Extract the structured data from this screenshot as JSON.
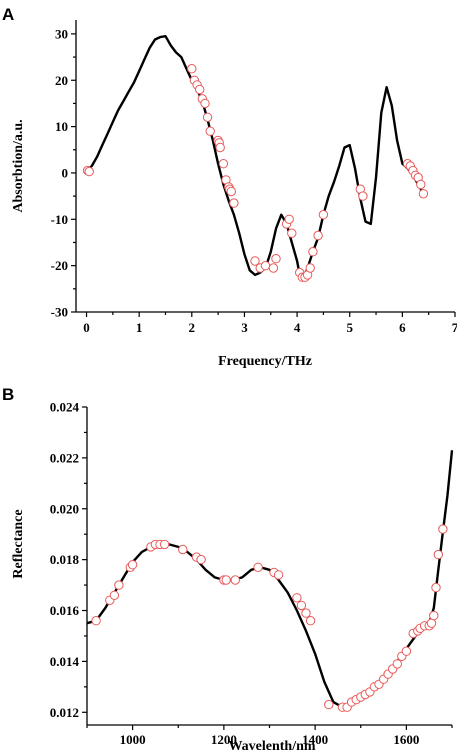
{
  "chart_data": [
    {
      "panel": "A",
      "type": "line",
      "title": "",
      "xlabel": "Frequency/THz",
      "ylabel": "Absorbtion/a.u.",
      "xlim": [
        -0.2,
        7
      ],
      "ylim": [
        -30,
        33
      ],
      "xticks": [
        0,
        1,
        2,
        3,
        4,
        5,
        6,
        7
      ],
      "yticks": [
        -30,
        -20,
        -10,
        0,
        10,
        20,
        30
      ],
      "grid": false,
      "series": [
        {
          "style": "line",
          "color": "#000000",
          "x": [
            0.0,
            0.1,
            0.2,
            0.3,
            0.4,
            0.5,
            0.6,
            0.7,
            0.8,
            0.9,
            1.0,
            1.1,
            1.2,
            1.3,
            1.4,
            1.5,
            1.6,
            1.7,
            1.8,
            1.9,
            2.0,
            2.1,
            2.2,
            2.3,
            2.4,
            2.5,
            2.6,
            2.7,
            2.8,
            2.9,
            3.0,
            3.1,
            3.2,
            3.3,
            3.4,
            3.5,
            3.6,
            3.7,
            3.8,
            3.9,
            4.0,
            4.05,
            4.1,
            4.15,
            4.2,
            4.3,
            4.4,
            4.5,
            4.6,
            4.7,
            4.8,
            4.9,
            5.0,
            5.1,
            5.2,
            5.3,
            5.4,
            5.5,
            5.6,
            5.7,
            5.8,
            5.9,
            6.0,
            6.1,
            6.2,
            6.3,
            6.4
          ],
          "y": [
            0.5,
            1.5,
            3.5,
            6,
            8.5,
            11,
            13.5,
            15.5,
            17.5,
            19.5,
            22,
            24.5,
            27,
            28.8,
            29.3,
            29.5,
            27.5,
            26,
            25,
            22.5,
            20,
            18,
            15.5,
            11.5,
            7,
            2,
            -2.5,
            -6,
            -9,
            -13,
            -17.5,
            -21,
            -22,
            -21.5,
            -20.5,
            -17,
            -12,
            -9,
            -11,
            -15,
            -19,
            -22,
            -22.5,
            -22,
            -20.5,
            -17,
            -14,
            -9,
            -5,
            -2,
            1.5,
            5.5,
            6,
            1,
            -5.5,
            -10.5,
            -11,
            -1,
            13,
            18.5,
            14.5,
            7,
            2,
            1,
            -0.5,
            -2.5,
            -4.5
          ]
        },
        {
          "style": "markers",
          "color": "#e85a5a",
          "x": [
            0.02,
            0.05,
            2.0,
            2.05,
            2.1,
            2.15,
            2.2,
            2.25,
            2.3,
            2.35,
            2.5,
            2.52,
            2.54,
            2.6,
            2.65,
            2.7,
            2.72,
            2.75,
            2.8,
            3.2,
            3.3,
            3.4,
            3.55,
            3.6,
            3.8,
            3.85,
            3.9,
            4.05,
            4.1,
            4.15,
            4.2,
            4.25,
            4.3,
            4.4,
            4.5,
            5.2,
            5.25,
            6.1,
            6.15,
            6.2,
            6.25,
            6.3,
            6.35,
            6.4
          ],
          "y": [
            0.5,
            0.3,
            22.5,
            20,
            19,
            18,
            16,
            15,
            12,
            9,
            7,
            6.5,
            5.5,
            2,
            -1.5,
            -3,
            -3.5,
            -4,
            -6.5,
            -19,
            -20.5,
            -20,
            -20.5,
            -18.5,
            -11,
            -10,
            -13,
            -21.5,
            -22.5,
            -22.5,
            -22,
            -20.5,
            -17,
            -13.5,
            -9,
            -3.5,
            -5,
            2,
            1.5,
            0.5,
            -0.5,
            -1,
            -2.5,
            -4.5
          ]
        }
      ]
    },
    {
      "panel": "B",
      "type": "line",
      "title": "",
      "xlabel": "Wavelenth/nm",
      "ylabel": "Reflectance",
      "xlim": [
        900,
        1700
      ],
      "ylim": [
        0.0115,
        0.024
      ],
      "xticks": [
        1000,
        1200,
        1400,
        1600
      ],
      "yticks": [
        0.012,
        0.014,
        0.016,
        0.018,
        0.02,
        0.022,
        0.024
      ],
      "grid": false,
      "series": [
        {
          "style": "line",
          "color": "#000000",
          "x": [
            900,
            920,
            940,
            960,
            980,
            1000,
            1020,
            1040,
            1060,
            1080,
            1100,
            1120,
            1140,
            1160,
            1180,
            1200,
            1220,
            1240,
            1260,
            1280,
            1300,
            1320,
            1340,
            1360,
            1380,
            1400,
            1420,
            1440,
            1460,
            1480,
            1500,
            1520,
            1540,
            1560,
            1580,
            1600,
            1620,
            1640,
            1650,
            1660,
            1670,
            1680,
            1690,
            1700
          ],
          "y": [
            0.0155,
            0.0156,
            0.0161,
            0.0167,
            0.0173,
            0.0179,
            0.0183,
            0.0185,
            0.0186,
            0.0186,
            0.0185,
            0.0183,
            0.018,
            0.0176,
            0.0173,
            0.0172,
            0.0172,
            0.0173,
            0.0176,
            0.0177,
            0.0176,
            0.0172,
            0.0167,
            0.016,
            0.0152,
            0.0143,
            0.0132,
            0.0124,
            0.0122,
            0.0123,
            0.0125,
            0.0127,
            0.0131,
            0.0135,
            0.014,
            0.0145,
            0.015,
            0.0154,
            0.0155,
            0.0161,
            0.0176,
            0.0191,
            0.0205,
            0.0223
          ]
        },
        {
          "style": "markers",
          "color": "#e85a5a",
          "x": [
            920,
            950,
            960,
            970,
            995,
            1000,
            1040,
            1050,
            1060,
            1070,
            1110,
            1140,
            1150,
            1200,
            1205,
            1225,
            1275,
            1310,
            1320,
            1360,
            1370,
            1380,
            1390,
            1430,
            1460,
            1470,
            1480,
            1490,
            1500,
            1510,
            1520,
            1530,
            1540,
            1550,
            1560,
            1570,
            1580,
            1590,
            1600,
            1615,
            1625,
            1630,
            1640,
            1650,
            1655,
            1660,
            1665,
            1670,
            1680
          ],
          "y": [
            0.0156,
            0.0164,
            0.0166,
            0.017,
            0.0177,
            0.0178,
            0.0185,
            0.0186,
            0.0186,
            0.0186,
            0.0184,
            0.0181,
            0.018,
            0.0172,
            0.0172,
            0.0172,
            0.0177,
            0.0175,
            0.0174,
            0.0165,
            0.0162,
            0.0159,
            0.0156,
            0.0123,
            0.0122,
            0.0122,
            0.0124,
            0.0125,
            0.0126,
            0.0127,
            0.0128,
            0.013,
            0.0131,
            0.0133,
            0.0135,
            0.0137,
            0.0139,
            0.0142,
            0.0144,
            0.0151,
            0.0152,
            0.0153,
            0.0154,
            0.0154,
            0.0155,
            0.0158,
            0.0169,
            0.0182,
            0.0192
          ]
        }
      ]
    }
  ],
  "figure": {
    "panel_labels": [
      "A",
      "B"
    ]
  }
}
